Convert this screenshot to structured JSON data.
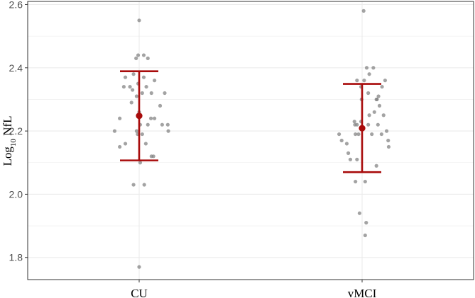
{
  "chart_data": {
    "type": "scatter",
    "title": "",
    "xlabel": "",
    "ylabel": {
      "base": "Log",
      "subscript": "10",
      "suffix": " NfL"
    },
    "categories": [
      "CU",
      "vMCI"
    ],
    "ylim": [
      1.73,
      2.61
    ],
    "y_ticks": [
      1.8,
      2.0,
      2.2,
      2.4,
      2.6
    ],
    "y_tick_labels": [
      "1.8",
      "2.0",
      "2.2",
      "2.4",
      "2.6"
    ],
    "grid": true,
    "summary": [
      {
        "group": "CU",
        "mean": 2.248,
        "lower": 2.107,
        "upper": 2.389
      },
      {
        "group": "vMCI",
        "mean": 2.209,
        "lower": 2.07,
        "upper": 2.349
      }
    ],
    "series": [
      {
        "name": "CU",
        "points": [
          {
            "jitter": 0.0,
            "y": 2.55
          },
          {
            "jitter": -0.06,
            "y": 2.43
          },
          {
            "jitter": -0.02,
            "y": 2.44
          },
          {
            "jitter": 0.09,
            "y": 2.44
          },
          {
            "jitter": 0.17,
            "y": 2.43
          },
          {
            "jitter": -0.27,
            "y": 2.37
          },
          {
            "jitter": -0.11,
            "y": 2.38
          },
          {
            "jitter": 0.09,
            "y": 2.37
          },
          {
            "jitter": 0.3,
            "y": 2.36
          },
          {
            "jitter": -0.3,
            "y": 2.34
          },
          {
            "jitter": -0.02,
            "y": 2.35
          },
          {
            "jitter": -0.18,
            "y": 2.34
          },
          {
            "jitter": -0.13,
            "y": 2.33
          },
          {
            "jitter": 0.14,
            "y": 2.34
          },
          {
            "jitter": 0.24,
            "y": 2.32
          },
          {
            "jitter": 0.06,
            "y": 2.32
          },
          {
            "jitter": 0.5,
            "y": 2.32
          },
          {
            "jitter": -0.05,
            "y": 2.31
          },
          {
            "jitter": -0.15,
            "y": 2.29
          },
          {
            "jitter": 0.0,
            "y": 2.26
          },
          {
            "jitter": 0.41,
            "y": 2.28
          },
          {
            "jitter": -0.38,
            "y": 2.24
          },
          {
            "jitter": 0.23,
            "y": 2.24
          },
          {
            "jitter": 0.3,
            "y": 2.24
          },
          {
            "jitter": 0.02,
            "y": 2.22
          },
          {
            "jitter": 0.17,
            "y": 2.22
          },
          {
            "jitter": 0.45,
            "y": 2.22
          },
          {
            "jitter": 0.56,
            "y": 2.22
          },
          {
            "jitter": -0.48,
            "y": 2.2
          },
          {
            "jitter": -0.05,
            "y": 2.2
          },
          {
            "jitter": 0.57,
            "y": 2.2
          },
          {
            "jitter": -0.03,
            "y": 2.19
          },
          {
            "jitter": 0.06,
            "y": 2.19
          },
          {
            "jitter": -0.27,
            "y": 2.16
          },
          {
            "jitter": 0.13,
            "y": 2.16
          },
          {
            "jitter": -0.38,
            "y": 2.15
          },
          {
            "jitter": 0.24,
            "y": 2.12
          },
          {
            "jitter": 0.28,
            "y": 2.12
          },
          {
            "jitter": 0.02,
            "y": 2.1
          },
          {
            "jitter": -0.11,
            "y": 2.03
          },
          {
            "jitter": 0.1,
            "y": 2.03
          },
          {
            "jitter": 0.0,
            "y": 1.77
          }
        ]
      },
      {
        "name": "vMCI",
        "points": [
          {
            "jitter": 0.03,
            "y": 2.58
          },
          {
            "jitter": 0.09,
            "y": 2.4
          },
          {
            "jitter": 0.22,
            "y": 2.4
          },
          {
            "jitter": 0.14,
            "y": 2.38
          },
          {
            "jitter": -0.1,
            "y": 2.36
          },
          {
            "jitter": 0.04,
            "y": 2.36
          },
          {
            "jitter": 0.45,
            "y": 2.36
          },
          {
            "jitter": -0.02,
            "y": 2.34
          },
          {
            "jitter": 0.39,
            "y": 2.34
          },
          {
            "jitter": 0.12,
            "y": 2.32
          },
          {
            "jitter": 0.32,
            "y": 2.31
          },
          {
            "jitter": -0.01,
            "y": 2.3
          },
          {
            "jitter": 0.29,
            "y": 2.3
          },
          {
            "jitter": 0.28,
            "y": 2.3
          },
          {
            "jitter": 0.34,
            "y": 2.28
          },
          {
            "jitter": 0.24,
            "y": 2.26
          },
          {
            "jitter": 0.14,
            "y": 2.25
          },
          {
            "jitter": 0.42,
            "y": 2.25
          },
          {
            "jitter": -0.15,
            "y": 2.23
          },
          {
            "jitter": -0.14,
            "y": 2.22
          },
          {
            "jitter": -0.02,
            "y": 2.23
          },
          {
            "jitter": -0.1,
            "y": 2.22
          },
          {
            "jitter": 0.12,
            "y": 2.22
          },
          {
            "jitter": 0.31,
            "y": 2.22
          },
          {
            "jitter": 0.48,
            "y": 2.2
          },
          {
            "jitter": -0.45,
            "y": 2.19
          },
          {
            "jitter": -0.13,
            "y": 2.19
          },
          {
            "jitter": -0.07,
            "y": 2.19
          },
          {
            "jitter": 0.19,
            "y": 2.19
          },
          {
            "jitter": 0.38,
            "y": 2.19
          },
          {
            "jitter": -0.4,
            "y": 2.17
          },
          {
            "jitter": 0.51,
            "y": 2.17
          },
          {
            "jitter": -0.3,
            "y": 2.16
          },
          {
            "jitter": 0.52,
            "y": 2.15
          },
          {
            "jitter": -0.27,
            "y": 2.13
          },
          {
            "jitter": -0.23,
            "y": 2.11
          },
          {
            "jitter": -0.1,
            "y": 2.11
          },
          {
            "jitter": 0.28,
            "y": 2.09
          },
          {
            "jitter": -0.13,
            "y": 2.04
          },
          {
            "jitter": 0.06,
            "y": 2.04
          },
          {
            "jitter": -0.05,
            "y": 1.94
          },
          {
            "jitter": 0.08,
            "y": 1.91
          },
          {
            "jitter": 0.06,
            "y": 1.87
          }
        ]
      }
    ]
  },
  "colors": {
    "summary": "#a80b0b",
    "points": "#7f7f7f",
    "grid": "#ebebeb",
    "frame": "#333333"
  }
}
